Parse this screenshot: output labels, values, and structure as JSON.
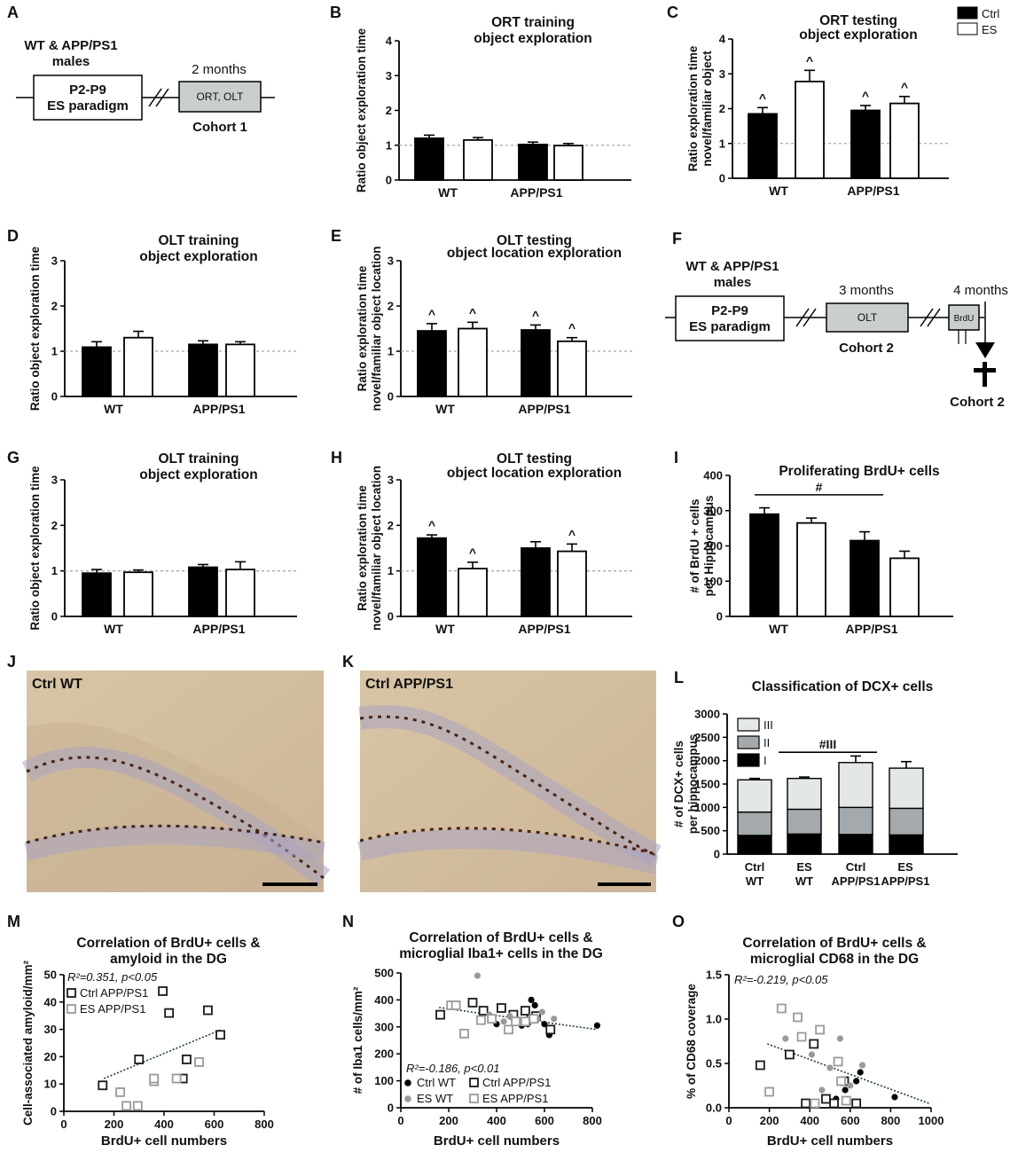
{
  "legend": {
    "ctrl": "Ctrl",
    "es": "ES",
    "ctrl_color": "#000000",
    "es_color": "#ffffff"
  },
  "panels": {
    "A": {
      "letter": "A",
      "group": "WT & APP/PS1",
      "group2": "males",
      "paradigm1": "P2-P9",
      "paradigm2": "ES paradigm",
      "age": "2 months",
      "tests": "ORT, OLT",
      "cohort": "Cohort 1"
    },
    "F": {
      "letter": "F",
      "group": "WT & APP/PS1",
      "group2": "males",
      "paradigm1": "P2-P9",
      "paradigm2": "ES paradigm",
      "age1": "3 months",
      "test": "OLT",
      "cohort_a": "Cohort 2",
      "age2": "4 months",
      "label": "BrdU",
      "cohort_b": "Cohort 2"
    },
    "J": {
      "letter": "J",
      "caption": "Ctrl WT"
    },
    "K": {
      "letter": "K",
      "caption": "Ctrl APP/PS1"
    }
  },
  "chart_data": [
    {
      "id": "B",
      "type": "bar",
      "title": [
        "ORT training",
        "object exploration"
      ],
      "ylabel": [
        "Ratio object exploration time"
      ],
      "categories": [
        "WT",
        "APP/PS1"
      ],
      "ylim": [
        0,
        4
      ],
      "yticks": [
        0,
        1,
        2,
        3,
        4
      ],
      "reference": 1,
      "series": [
        {
          "name": "Ctrl",
          "values": [
            1.2,
            1.02
          ],
          "errors": [
            0.09,
            0.07
          ]
        },
        {
          "name": "ES",
          "values": [
            1.15,
            0.99
          ],
          "errors": [
            0.07,
            0.06
          ]
        }
      ],
      "marks": []
    },
    {
      "id": "C",
      "type": "bar",
      "title": [
        "ORT testing",
        "object exploration"
      ],
      "ylabel": [
        "Ratio exploration time",
        "novel/familiar object"
      ],
      "categories": [
        "WT",
        "APP/PS1"
      ],
      "ylim": [
        0,
        4
      ],
      "yticks": [
        0,
        1,
        2,
        3,
        4
      ],
      "reference": 1,
      "series": [
        {
          "name": "Ctrl",
          "values": [
            1.85,
            1.95
          ],
          "errors": [
            0.18,
            0.14
          ]
        },
        {
          "name": "ES",
          "values": [
            2.78,
            2.15
          ],
          "errors": [
            0.32,
            0.2
          ]
        }
      ],
      "marks": [
        "^",
        "^",
        "^",
        "^"
      ]
    },
    {
      "id": "D",
      "type": "bar",
      "title": [
        "OLT training",
        "object exploration"
      ],
      "ylabel": [
        "Ratio object exploration time"
      ],
      "categories": [
        "WT",
        "APP/PS1"
      ],
      "ylim": [
        0,
        3
      ],
      "yticks": [
        0,
        1,
        2,
        3
      ],
      "reference": 1,
      "series": [
        {
          "name": "Ctrl",
          "values": [
            1.09,
            1.15
          ],
          "errors": [
            0.12,
            0.08
          ]
        },
        {
          "name": "ES",
          "values": [
            1.3,
            1.15
          ],
          "errors": [
            0.14,
            0.06
          ]
        }
      ],
      "marks": []
    },
    {
      "id": "E",
      "type": "bar",
      "title": [
        "OLT testing",
        "object location exploration"
      ],
      "ylabel": [
        "Ratio exploration time",
        "novel/familiar object location"
      ],
      "categories": [
        "WT",
        "APP/PS1"
      ],
      "ylim": [
        0,
        3
      ],
      "yticks": [
        0,
        1,
        2,
        3
      ],
      "reference": 1,
      "series": [
        {
          "name": "Ctrl",
          "values": [
            1.45,
            1.47
          ],
          "errors": [
            0.16,
            0.11
          ]
        },
        {
          "name": "ES",
          "values": [
            1.5,
            1.22
          ],
          "errors": [
            0.14,
            0.08
          ]
        }
      ],
      "marks": [
        "^",
        "^",
        "^",
        "^"
      ]
    },
    {
      "id": "G",
      "type": "bar",
      "title": [
        "OLT training",
        "object exploration"
      ],
      "ylabel": [
        "Ratio object exploration time"
      ],
      "categories": [
        "WT",
        "APP/PS1"
      ],
      "ylim": [
        0,
        3
      ],
      "yticks": [
        0,
        1,
        2,
        3
      ],
      "reference": 1,
      "series": [
        {
          "name": "Ctrl",
          "values": [
            0.95,
            1.08
          ],
          "errors": [
            0.08,
            0.06
          ]
        },
        {
          "name": "ES",
          "values": [
            0.97,
            1.03
          ],
          "errors": [
            0.05,
            0.17
          ]
        }
      ],
      "marks": []
    },
    {
      "id": "H",
      "type": "bar",
      "title": [
        "OLT testing",
        "object location exploration"
      ],
      "ylabel": [
        "Ratio exploration time",
        "novel/familiar object location"
      ],
      "categories": [
        "WT",
        "APP/PS1"
      ],
      "ylim": [
        0,
        3
      ],
      "yticks": [
        0,
        1,
        2,
        3
      ],
      "reference": 1,
      "series": [
        {
          "name": "Ctrl",
          "values": [
            1.72,
            1.5
          ],
          "errors": [
            0.07,
            0.14
          ]
        },
        {
          "name": "ES",
          "values": [
            1.05,
            1.43
          ],
          "errors": [
            0.14,
            0.16
          ]
        }
      ],
      "marks": [
        "^",
        "",
        "^",
        "^"
      ]
    },
    {
      "id": "I",
      "type": "bar",
      "title": [
        "Proliferating BrdU+ cells"
      ],
      "ylabel": [
        "# of BrdU + cells",
        "per Hippocampus"
      ],
      "categories": [
        "WT",
        "APP/PS1"
      ],
      "ylim": [
        0,
        400
      ],
      "yticks": [
        0,
        100,
        200,
        300,
        400
      ],
      "series": [
        {
          "name": "Ctrl",
          "values": [
            290,
            215
          ],
          "errors": [
            18,
            25
          ]
        },
        {
          "name": "ES",
          "values": [
            265,
            165
          ],
          "errors": [
            14,
            20
          ]
        }
      ],
      "sig": {
        "label": "#",
        "from": 0,
        "to": 1,
        "y": 345
      }
    },
    {
      "id": "L",
      "type": "stacked-bar",
      "title": [
        "Classification of DCX+ cells"
      ],
      "ylabel": [
        "# of DCX+ cells",
        "per hippocampus"
      ],
      "categories": [
        [
          "Ctrl",
          "WT"
        ],
        [
          "ES",
          "WT"
        ],
        [
          "Ctrl",
          "APP/PS1"
        ],
        [
          "ES",
          "APP/PS1"
        ]
      ],
      "ylim": [
        0,
        3000
      ],
      "yticks": [
        0,
        500,
        1000,
        1500,
        2000,
        2500,
        3000
      ],
      "series": [
        {
          "name": "I",
          "color": "#000000",
          "values": [
            400,
            430,
            420,
            410
          ],
          "errors": [
            20,
            20,
            25,
            45
          ]
        },
        {
          "name": "II",
          "color": "#a3a9ad",
          "values": [
            500,
            530,
            580,
            570
          ],
          "errors": [
            20,
            25,
            30,
            40
          ]
        },
        {
          "name": "III",
          "color": "#e3e8e6",
          "values": [
            690,
            660,
            960,
            860
          ],
          "errors": [
            30,
            30,
            140,
            140
          ]
        }
      ],
      "sig": {
        "label": "#III",
        "from": 1,
        "to": 2,
        "y": 2180
      }
    },
    {
      "id": "M",
      "type": "scatter",
      "title": [
        "Correlation of BrdU+ cells &",
        "amyloid in the DG"
      ],
      "xlabel": "BrdU+ cell numbers",
      "ylabel": "Cell-associated amyloid/mm²",
      "xlim": [
        0,
        800
      ],
      "ylim": [
        0,
        50
      ],
      "xticks": [
        0,
        200,
        400,
        600,
        800
      ],
      "yticks": [
        0,
        10,
        20,
        30,
        40,
        50
      ],
      "annotation": "R²=0.351, p<0.05",
      "series": [
        {
          "name": "Ctrl APP/PS1",
          "marker": "square-open",
          "color": "#1a1a1a",
          "points": [
            [
              155,
              9.5
            ],
            [
              300,
              19
            ],
            [
              395,
              44
            ],
            [
              420,
              36
            ],
            [
              490,
              19
            ],
            [
              575,
              37
            ],
            [
              625,
              28
            ],
            [
              475,
              12
            ]
          ]
        },
        {
          "name": "ES APP/PS1",
          "marker": "square-open",
          "color": "#9a9a9a",
          "points": [
            [
              225,
              7
            ],
            [
              250,
              2
            ],
            [
              295,
              2
            ],
            [
              360,
              11
            ],
            [
              360,
              12
            ],
            [
              450,
              12
            ],
            [
              540,
              18
            ]
          ]
        }
      ],
      "fit": [
        [
          160,
          12
        ],
        [
          630,
          30
        ]
      ]
    },
    {
      "id": "N",
      "type": "scatter",
      "title": [
        "Correlation of BrdU+ cells &",
        "microglial Iba1+ cells in the DG"
      ],
      "xlabel": "BrdU+ cell numbers",
      "ylabel": "# of Iba1 cells/mm²",
      "xlim": [
        0,
        800
      ],
      "ylim": [
        0,
        500
      ],
      "xticks": [
        0,
        200,
        400,
        600,
        800
      ],
      "yticks": [
        0,
        100,
        200,
        300,
        400,
        500
      ],
      "annotation": "R²=-0.186, p<0.01",
      "series": [
        {
          "name": "Ctrl WT",
          "marker": "circle-filled",
          "color": "#000000",
          "points": [
            [
              400,
              310
            ],
            [
              505,
              305
            ],
            [
              530,
              310
            ],
            [
              545,
              400
            ],
            [
              560,
              380
            ],
            [
              600,
              310
            ],
            [
              620,
              270
            ],
            [
              625,
              290
            ],
            [
              820,
              305
            ]
          ]
        },
        {
          "name": "Ctrl APP/PS1",
          "marker": "square-open",
          "color": "#1a1a1a",
          "points": [
            [
              165,
              345
            ],
            [
              300,
              390
            ],
            [
              345,
              360
            ],
            [
              420,
              370
            ],
            [
              470,
              345
            ],
            [
              520,
              360
            ],
            [
              545,
              330
            ],
            [
              565,
              340
            ],
            [
              625,
              290
            ]
          ]
        },
        {
          "name": "ES WT",
          "marker": "circle-filled",
          "color": "#9a9a9a",
          "points": [
            [
              320,
              490
            ],
            [
              370,
              345
            ],
            [
              430,
              320
            ],
            [
              455,
              340
            ],
            [
              570,
              330
            ],
            [
              590,
              355
            ],
            [
              640,
              330
            ]
          ]
        },
        {
          "name": "ES APP/PS1",
          "marker": "square-open",
          "color": "#9a9a9a",
          "points": [
            [
              210,
              380
            ],
            [
              230,
              380
            ],
            [
              265,
              275
            ],
            [
              335,
              325
            ],
            [
              380,
              330
            ],
            [
              450,
              290
            ],
            [
              480,
              320
            ],
            [
              520,
              320
            ],
            [
              555,
              330
            ]
          ]
        }
      ],
      "fit": [
        [
          160,
          372
        ],
        [
          820,
          290
        ]
      ]
    },
    {
      "id": "O",
      "type": "scatter",
      "title": [
        "Correlation of BrdU+ cells &",
        "microglial CD68 in the DG"
      ],
      "xlabel": "BrdU+ cell numbers",
      "ylabel": "% of CD68 coverage",
      "xlim": [
        0,
        1000
      ],
      "ylim": [
        0,
        1.5
      ],
      "xticks": [
        0,
        200,
        400,
        600,
        800,
        1000
      ],
      "yticks": [
        0,
        0.5,
        1.0,
        1.5
      ],
      "ytickLabels": [
        "0.0",
        "0.5",
        "1.0",
        "1.5"
      ],
      "annotation": "R²=-0.219, p<0.05",
      "series": [
        {
          "name": "Ctrl WT",
          "marker": "circle-filled",
          "color": "#000000",
          "points": [
            [
              530,
              0.1
            ],
            [
              575,
              0.2
            ],
            [
              630,
              0.3
            ],
            [
              650,
              0.4
            ],
            [
              820,
              0.12
            ]
          ]
        },
        {
          "name": "Ctrl APP/PS1",
          "marker": "square-open",
          "color": "#1a1a1a",
          "points": [
            [
              155,
              0.48
            ],
            [
              300,
              0.6
            ],
            [
              380,
              0.05
            ],
            [
              420,
              0.72
            ],
            [
              480,
              0.1
            ],
            [
              520,
              0.05
            ],
            [
              570,
              0.3
            ],
            [
              630,
              0.05
            ]
          ]
        },
        {
          "name": "ES WT",
          "marker": "circle-filled",
          "color": "#9a9a9a",
          "points": [
            [
              280,
              0.78
            ],
            [
              410,
              0.6
            ],
            [
              460,
              0.2
            ],
            [
              500,
              0.45
            ],
            [
              550,
              0.78
            ],
            [
              600,
              0.25
            ],
            [
              660,
              0.48
            ]
          ]
        },
        {
          "name": "ES APP/PS1",
          "marker": "square-open",
          "color": "#9a9a9a",
          "points": [
            [
              200,
              0.18
            ],
            [
              260,
              1.12
            ],
            [
              340,
              1.02
            ],
            [
              360,
              0.8
            ],
            [
              425,
              0.05
            ],
            [
              450,
              0.88
            ],
            [
              540,
              0.52
            ],
            [
              555,
              0.3
            ],
            [
              580,
              0.08
            ]
          ]
        }
      ],
      "fit": [
        [
          190,
          0.72
        ],
        [
          990,
          0.05
        ]
      ]
    }
  ]
}
